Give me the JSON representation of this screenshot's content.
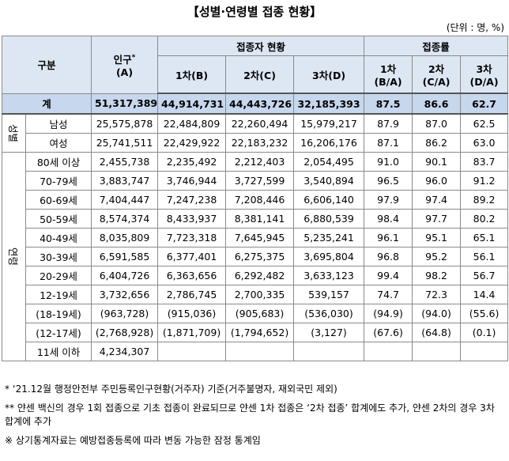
{
  "header": {
    "title": "【성별·연령별 접종 현황】",
    "unit": "(단위 : 명, %)"
  },
  "table": {
    "head": {
      "group": "구분",
      "population": "인구",
      "population_mark": "*",
      "population_unit": "(A)",
      "vaccinated": "접종자 현황",
      "vaccinated_cols": [
        "1차(B)",
        "2차(C)",
        "3차(D)"
      ],
      "rate": "접종률",
      "rate_cols": [
        [
          "1차",
          "(B/A)"
        ],
        [
          "2차",
          "(C/A)"
        ],
        [
          "3차",
          "(D/A)"
        ]
      ]
    },
    "total": {
      "label": "계",
      "cells": [
        "51,317,389",
        "44,914,731",
        "44,443,726",
        "32,185,393",
        "87.5",
        "86.6",
        "62.7"
      ]
    },
    "groups": [
      {
        "label": "성별",
        "rows": [
          {
            "label": "남성",
            "cells": [
              "25,575,878",
              "22,484,809",
              "22,260,494",
              "15,979,217",
              "87.9",
              "87.0",
              "62.5"
            ]
          },
          {
            "label": "여성",
            "cells": [
              "25,741,511",
              "22,429,922",
              "22,183,232",
              "16,206,176",
              "87.1",
              "86.2",
              "63.0"
            ]
          }
        ]
      },
      {
        "label": "연령",
        "rows": [
          {
            "label": "80세 이상",
            "cells": [
              "2,455,738",
              "2,235,492",
              "2,212,403",
              "2,054,495",
              "91.0",
              "90.1",
              "83.7"
            ]
          },
          {
            "label": "70-79세",
            "cells": [
              "3,883,747",
              "3,746,944",
              "3,727,599",
              "3,540,894",
              "96.5",
              "96.0",
              "91.2"
            ]
          },
          {
            "label": "60-69세",
            "cells": [
              "7,404,447",
              "7,247,238",
              "7,208,446",
              "6,606,140",
              "97.9",
              "97.4",
              "89.2"
            ]
          },
          {
            "label": "50-59세",
            "cells": [
              "8,574,374",
              "8,433,937",
              "8,381,141",
              "6,880,539",
              "98.4",
              "97.7",
              "80.2"
            ]
          },
          {
            "label": "40-49세",
            "cells": [
              "8,035,809",
              "7,723,318",
              "7,645,945",
              "5,235,241",
              "96.1",
              "95.1",
              "65.1"
            ]
          },
          {
            "label": "30-39세",
            "cells": [
              "6,591,585",
              "6,377,401",
              "6,275,375",
              "3,695,804",
              "96.8",
              "95.2",
              "56.1"
            ]
          },
          {
            "label": "20-29세",
            "cells": [
              "6,404,726",
              "6,363,656",
              "6,292,482",
              "3,633,123",
              "99.4",
              "98.2",
              "56.7"
            ]
          },
          {
            "label": "12-19세",
            "cells": [
              "3,732,656",
              "2,786,745",
              "2,700,335",
              "539,157",
              "74.7",
              "72.3",
              "14.4"
            ]
          },
          {
            "label": "(18-19세)",
            "cells": [
              "(963,728)",
              "(915,036)",
              "(905,683)",
              "(536,030)",
              "(94.9)",
              "(94.0)",
              "(55.6)"
            ]
          },
          {
            "label": "(12-17세)",
            "cells": [
              "(2,768,928)",
              "(1,871,709)",
              "(1,794,652)",
              "(3,127)",
              "(67.6)",
              "(64.8)",
              "(0.1)"
            ]
          },
          {
            "label": "11세 이하",
            "cells": [
              "4,234,307"
            ]
          }
        ]
      }
    ]
  },
  "notes": [
    "* ‘21.12월 행정안전부 주민등록인구현황(거주자) 기준(거주불명자, 재외국민 제외)",
    "** 얀센 백신의 경우 1회 접종으로 기초 접종이 완료되므로 얀센 1차 접종은 ‘2차 접종’ 합계에도 추가, 얀센 2차의 경우 3차 합계에 추가",
    "※ 상기통계자료는 예방접종등록에 따라 변동 가능한 잠정 통계임"
  ]
}
